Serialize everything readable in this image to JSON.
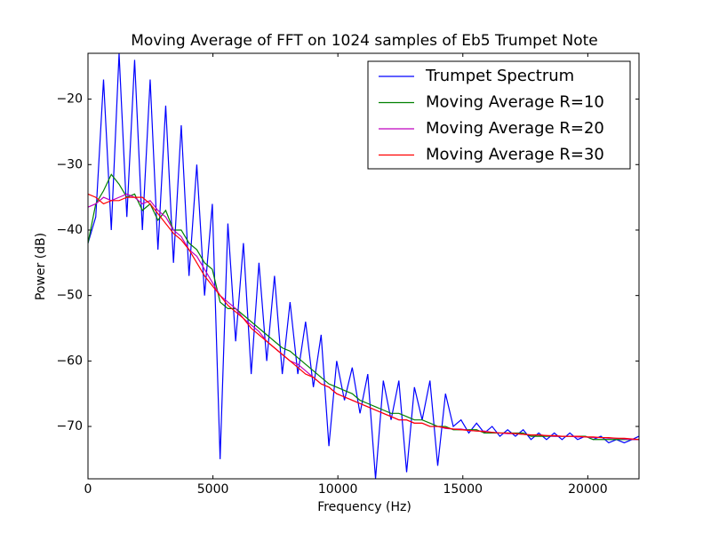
{
  "chart_data": {
    "type": "line",
    "title": "Moving Average of FFT on 1024 samples of Eb5 Trumpet Note",
    "x_label": "Frequency (Hz)",
    "y_label": "Power (dB)",
    "x": [
      0,
      311,
      622,
      933,
      1244,
      1555,
      1866,
      2177,
      2488,
      2799,
      3110,
      3421,
      3732,
      4043,
      4354,
      4665,
      4976,
      5287,
      5598,
      5909,
      6220,
      6531,
      6842,
      7153,
      7464,
      7775,
      8086,
      8397,
      8708,
      9019,
      9330,
      9641,
      9952,
      10263,
      10574,
      10885,
      11196,
      11507,
      11818,
      12129,
      12440,
      12751,
      13062,
      13373,
      13684,
      13995,
      14306,
      14617,
      14928,
      15239,
      15550,
      15861,
      16172,
      16483,
      16794,
      17105,
      17416,
      17727,
      18038,
      18349,
      18660,
      18971,
      19282,
      19593,
      19904,
      20215,
      20526,
      20837,
      21148,
      21459,
      21770,
      22050
    ],
    "series": [
      {
        "name": "Trumpet Spectrum",
        "color": "#0000ff",
        "values": [
          -42,
          -38,
          -17,
          -40,
          -13,
          -38,
          -14,
          -40,
          -17,
          -43,
          -21,
          -45,
          -24,
          -47,
          -30,
          -50,
          -36,
          -75,
          -39,
          -57,
          -42,
          -62,
          -45,
          -60,
          -47,
          -62,
          -51,
          -62,
          -54,
          -64,
          -56,
          -73,
          -60,
          -66,
          -61,
          -68,
          -62,
          -78,
          -63,
          -69,
          -63,
          -77,
          -64,
          -69,
          -63,
          -76,
          -65,
          -70,
          -69,
          -71,
          -69.5,
          -71,
          -70,
          -71.5,
          -70.5,
          -71.5,
          -70.5,
          -72,
          -71,
          -72,
          -71,
          -72,
          -71,
          -72,
          -71.5,
          -72,
          -71.5,
          -72.5,
          -72,
          -72.5,
          -72,
          -71.5
        ]
      },
      {
        "name": "Moving Average R=10",
        "color": "#008000",
        "values": [
          -42,
          -36,
          -34,
          -31.5,
          -33,
          -35,
          -34.5,
          -37,
          -36,
          -38.5,
          -37,
          -40,
          -40,
          -42,
          -43,
          -45,
          -46,
          -51,
          -52,
          -52,
          -53,
          -54,
          -55,
          -56,
          -57,
          -58,
          -58.5,
          -59.5,
          -60.5,
          -61.5,
          -62.5,
          -63.5,
          -64,
          -64.5,
          -65,
          -66,
          -66.5,
          -67,
          -67.5,
          -68,
          -68,
          -68.5,
          -69,
          -69,
          -69.5,
          -70,
          -70,
          -70.5,
          -70.5,
          -70.5,
          -70.5,
          -71,
          -71,
          -71,
          -71,
          -71,
          -71,
          -71.5,
          -71.5,
          -71.5,
          -71.5,
          -71.5,
          -71.5,
          -71.5,
          -71.5,
          -72,
          -72,
          -72,
          -72,
          -72,
          -72,
          -72
        ]
      },
      {
        "name": "Moving Average R=20",
        "color": "#bf00bf",
        "values": [
          -36.5,
          -36,
          -35,
          -35.5,
          -35,
          -34.5,
          -35,
          -36,
          -35.5,
          -37,
          -38,
          -40,
          -41,
          -43,
          -44,
          -46,
          -48,
          -50,
          -51,
          -52,
          -53.5,
          -54.5,
          -55.5,
          -57,
          -58,
          -59,
          -60,
          -60.5,
          -61.5,
          -62.5,
          -63.5,
          -64,
          -65,
          -65.5,
          -66,
          -66.5,
          -67,
          -67.5,
          -68,
          -68.5,
          -69,
          -69,
          -69.5,
          -69.5,
          -70,
          -70,
          -70.3,
          -70.4,
          -70.4,
          -70.6,
          -70.7,
          -70.7,
          -70.9,
          -71,
          -71.1,
          -71.1,
          -71.2,
          -71.3,
          -71.3,
          -71.4,
          -71.5,
          -71.5,
          -71.5,
          -71.6,
          -71.6,
          -71.7,
          -71.7,
          -71.8,
          -71.8,
          -71.9,
          -72,
          -72
        ]
      },
      {
        "name": "Moving Average R=30",
        "color": "#ff0000",
        "values": [
          -34.5,
          -35,
          -36,
          -35.5,
          -35.5,
          -35,
          -35,
          -35,
          -36,
          -37.5,
          -39,
          -40.5,
          -41.5,
          -43,
          -45,
          -47,
          -48.5,
          -50,
          -51.5,
          -52.5,
          -53.5,
          -55,
          -56,
          -57,
          -58,
          -59,
          -60,
          -61,
          -62,
          -62.5,
          -63.5,
          -64,
          -65,
          -65.5,
          -66,
          -66.5,
          -67,
          -67.5,
          -68,
          -68.5,
          -69,
          -69,
          -69.5,
          -69.5,
          -70,
          -70,
          -70.2,
          -70.4,
          -70.5,
          -70.6,
          -70.7,
          -70.8,
          -70.9,
          -71,
          -71,
          -71.1,
          -71.2,
          -71.3,
          -71.3,
          -71.4,
          -71.4,
          -71.5,
          -71.5,
          -71.5,
          -71.6,
          -71.6,
          -71.7,
          -71.7,
          -71.8,
          -71.8,
          -71.9,
          -72
        ]
      }
    ],
    "xlim": [
      0,
      22050
    ],
    "ylim": [
      -78,
      -13
    ],
    "xticks": [
      0,
      5000,
      10000,
      15000,
      20000
    ],
    "yticks": [
      {
        "value": -70,
        "label": "−70"
      },
      {
        "value": -60,
        "label": "−60"
      },
      {
        "value": -50,
        "label": "−50"
      },
      {
        "value": -40,
        "label": "−40"
      },
      {
        "value": -30,
        "label": "−30"
      },
      {
        "value": -20,
        "label": "−20"
      }
    ],
    "legend": "upper right",
    "grid": false
  }
}
